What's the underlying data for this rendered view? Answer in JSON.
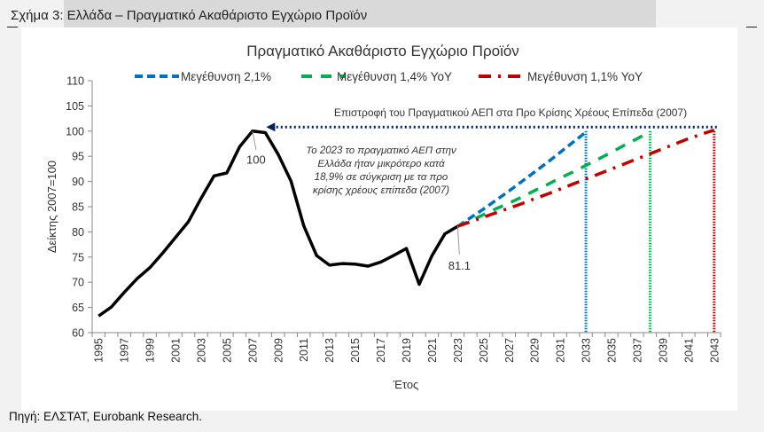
{
  "figure_title": "Σχήμα 3: Ελλάδα – Πραγματικό Ακαθάριστο Εγχώριο Προϊόν",
  "source": "Πηγή: ΕΛΣΤΑΤ, Eurobank Research.",
  "chart_data": {
    "type": "line",
    "title": "Πραγματικό Ακαθάριστο Εγχώριο Προϊόν",
    "xlabel": "Έτος",
    "ylabel": "Δείκτης 2007=100",
    "ylim": [
      60,
      110
    ],
    "yticks": [
      60,
      65,
      70,
      75,
      80,
      85,
      90,
      95,
      100,
      105,
      110
    ],
    "xticks": [
      "1995",
      "1997",
      "1999",
      "2001",
      "2003",
      "2005",
      "2007",
      "2009",
      "2011",
      "2013",
      "2015",
      "2017",
      "2019",
      "2021",
      "2023",
      "2025",
      "2027",
      "2029",
      "2031",
      "2033",
      "2035",
      "2037",
      "2039",
      "2041",
      "2043"
    ],
    "xrange": [
      1995,
      2043
    ],
    "grid": false,
    "legend_position": "top",
    "historical": {
      "color": "#000000",
      "x": [
        1995,
        1996,
        1997,
        1998,
        1999,
        2000,
        2001,
        2002,
        2003,
        2004,
        2005,
        2006,
        2007,
        2008,
        2009,
        2010,
        2011,
        2012,
        2013,
        2014,
        2015,
        2016,
        2017,
        2018,
        2019,
        2020,
        2021,
        2022,
        2023
      ],
      "y": [
        63.3,
        65.1,
        68.0,
        70.7,
        72.9,
        75.8,
        78.9,
        82.0,
        86.7,
        91.1,
        91.7,
        96.9,
        100,
        99.7,
        95.4,
        90.1,
        81.2,
        75.3,
        73.4,
        73.7,
        73.6,
        73.2,
        74.0,
        75.3,
        76.7,
        69.6,
        75.3,
        79.6,
        81.1
      ]
    },
    "series": [
      {
        "name": "Μεγέθυνση 2,1%",
        "color": "#0070c0",
        "dash": "dash",
        "x": [
          2023,
          2024,
          2025,
          2026,
          2027,
          2028,
          2029,
          2030,
          2031,
          2032,
          2033
        ],
        "y": [
          81.1,
          82.8,
          84.5,
          86.3,
          88.1,
          90.0,
          91.9,
          93.8,
          95.8,
          97.8,
          99.8
        ],
        "target_year": 2033
      },
      {
        "name": "Μεγέθυνση 1,4% YoY",
        "color": "#00b050",
        "dash": "longdash",
        "x": [
          2023,
          2024,
          2025,
          2026,
          2027,
          2028,
          2029,
          2030,
          2031,
          2032,
          2033,
          2034,
          2035,
          2036,
          2037,
          2038
        ],
        "y": [
          81.1,
          82.2,
          83.4,
          84.6,
          85.7,
          86.9,
          88.2,
          89.4,
          90.7,
          91.9,
          93.2,
          94.5,
          95.8,
          97.2,
          98.5,
          99.9
        ],
        "target_year": 2038
      },
      {
        "name": "Μεγέθυνση 1,1% YoY",
        "color": "#c00000",
        "dash": "dashdot",
        "x": [
          2023,
          2024,
          2025,
          2026,
          2027,
          2028,
          2029,
          2030,
          2031,
          2032,
          2033,
          2034,
          2035,
          2036,
          2037,
          2038,
          2039,
          2040,
          2041,
          2042,
          2043
        ],
        "y": [
          81.1,
          82.0,
          82.9,
          83.8,
          84.7,
          85.6,
          86.6,
          87.5,
          88.5,
          89.5,
          90.5,
          91.5,
          92.5,
          93.5,
          94.5,
          95.5,
          96.5,
          97.5,
          98.5,
          99.4,
          100.2
        ],
        "target_year": 2043
      }
    ],
    "annotations": {
      "peak_label": "100",
      "last_label": "81.1",
      "return_line_label": "Επιστροφή του Πραγματικού ΑΕΠ στα Προ Κρίσης Χρέους Επίπεδα (2007)",
      "return_line_color": "#002060",
      "note_lines": [
        "Το 2023 το πραγματικό ΑΕΠ στην",
        "Ελλάδα ήταν μικρότερο κατά",
        "18,9% σε σύγκριση με τα προ",
        "κρίσης χρέους επίπεδα (2007)"
      ]
    }
  }
}
